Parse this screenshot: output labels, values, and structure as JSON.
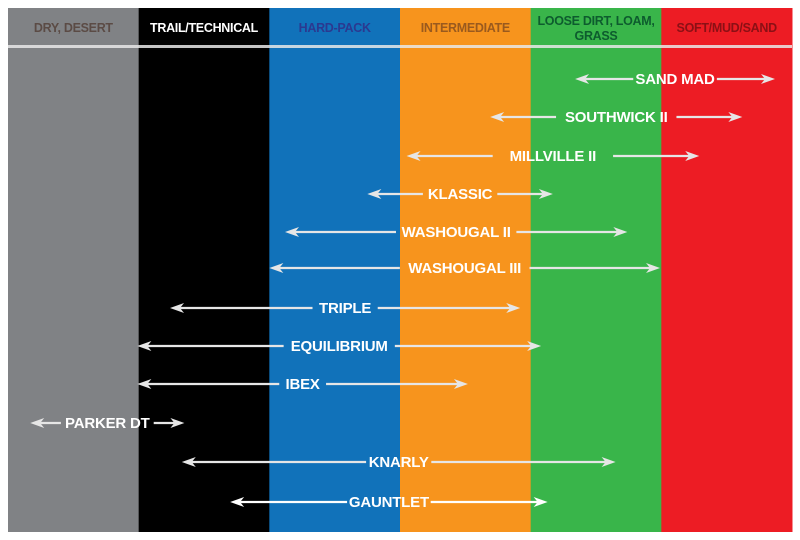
{
  "chart_data": {
    "type": "range",
    "categories": [
      {
        "label": "DRY, DESERT",
        "color": "#808285",
        "text_color": "#5b4b45"
      },
      {
        "label": "TRAIL/TECHNICAL",
        "color": "#000000",
        "text_color": "#ffffff"
      },
      {
        "label": "HARD-PACK",
        "color": "#1172ba",
        "text_color": "#2b3990"
      },
      {
        "label": "INTERMEDIATE",
        "color": "#f7941d",
        "text_color": "#9a5a1e"
      },
      {
        "label": "LOOSE DIRT, LOAM, GRASS",
        "color": "#39b54a",
        "text_color": "#0d5c2e"
      },
      {
        "label": "SOFT/MUD/SAND",
        "color": "#ed1c24",
        "text_color": "#8b1015"
      }
    ],
    "scale_range": [
      0,
      6
    ],
    "series": [
      {
        "name": "SAND MAD",
        "start": 4.34,
        "end": 5.87,
        "arrow_color": "#e6e6e6"
      },
      {
        "name": "SOUTHWICK II",
        "start": 3.69,
        "end": 5.62,
        "arrow_color": "#e6e6e6"
      },
      {
        "name": "MILLVILLE II",
        "start": 3.05,
        "end": 5.29,
        "arrow_color": "#e6e6e6"
      },
      {
        "name": "KLASSIC",
        "start": 2.75,
        "end": 4.17,
        "arrow_color": "#e6e6e6"
      },
      {
        "name": "WASHOUGAL II",
        "start": 2.12,
        "end": 4.74,
        "arrow_color": "#e6e6e6"
      },
      {
        "name": "WASHOUGAL III",
        "start": 2.0,
        "end": 4.99,
        "arrow_color": "#e6e6e6"
      },
      {
        "name": "TRIPLE",
        "start": 1.24,
        "end": 3.92,
        "arrow_color": "#e6e6e6"
      },
      {
        "name": "EQUILIBRIUM",
        "start": 0.99,
        "end": 4.08,
        "arrow_color": "#e6e6e6"
      },
      {
        "name": "IBEX",
        "start": 0.99,
        "end": 3.52,
        "arrow_color": "#e6e6e6"
      },
      {
        "name": "PARKER DT",
        "start": 0.17,
        "end": 1.35,
        "arrow_color": "#e6e6e6"
      },
      {
        "name": "KNARLY",
        "start": 1.33,
        "end": 4.65,
        "arrow_color": "#e6e6e6"
      },
      {
        "name": "GAUNTLET",
        "start": 1.7,
        "end": 4.13,
        "arrow_color": "#ffffff"
      }
    ]
  }
}
